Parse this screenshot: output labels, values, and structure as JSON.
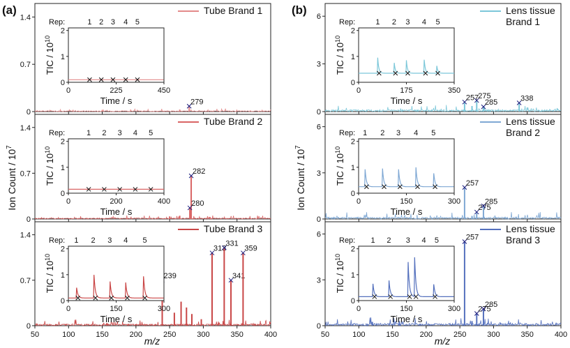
{
  "figure": {
    "panel_labels": [
      "(a)",
      "(b)"
    ],
    "inset_ylabel_base": "TIC / 10",
    "inset_ylabel_exp": "10",
    "inset_xlabel": "Time / s",
    "ylabel_base": "Ion Count / 10",
    "ylabel_exp": "7",
    "xlabel": "m/z",
    "rep_label": "Rep:",
    "rep_numbers": [
      "1",
      "2",
      "3",
      "4",
      "5"
    ]
  },
  "chart_data": [
    {
      "panel": "(a)",
      "type": "line",
      "legend": [
        "Tube Brand 1"
      ],
      "color": "#e38a8a",
      "xlim": [
        50,
        400
      ],
      "ylim": [
        0,
        1.6
      ],
      "yticks": [
        0.0,
        0.7,
        1.4
      ],
      "xticks": [
        50,
        100,
        150,
        200,
        250,
        300,
        350,
        400
      ],
      "show_xticklabels": false,
      "noise_level": 0.012,
      "peaks": [
        {
          "x": 279,
          "y": 0.08,
          "label": "279"
        },
        {
          "x": 265,
          "y": 0.03
        },
        {
          "x": 150,
          "y": 0.025
        }
      ],
      "inset": {
        "xlim": [
          0,
          450
        ],
        "xticks": [
          0,
          225,
          450
        ],
        "ylim": [
          0,
          2.1
        ],
        "yticks": [
          0,
          1,
          2
        ],
        "baseline": 0.1,
        "spikes": [],
        "markers": [
          100,
          155,
          210,
          270,
          325
        ],
        "rep_positions": [
          100,
          155,
          210,
          270,
          325
        ]
      }
    },
    {
      "panel": "(a)",
      "type": "line",
      "legend": [
        "Tube Brand 2"
      ],
      "color": "#d96565",
      "xlim": [
        50,
        400
      ],
      "ylim": [
        0,
        1.6
      ],
      "yticks": [
        0.0,
        0.7,
        1.4
      ],
      "xticks": [
        50,
        100,
        150,
        200,
        250,
        300,
        350,
        400
      ],
      "show_xticklabels": false,
      "noise_level": 0.015,
      "peaks": [
        {
          "x": 282,
          "y": 0.66,
          "label": "282"
        },
        {
          "x": 280,
          "y": 0.17,
          "label": "280"
        },
        {
          "x": 265,
          "y": 0.05
        },
        {
          "x": 250,
          "y": 0.04
        },
        {
          "x": 310,
          "y": 0.03
        }
      ],
      "inset": {
        "xlim": [
          0,
          400
        ],
        "xticks": [
          0,
          200,
          400
        ],
        "ylim": [
          0,
          2.1
        ],
        "yticks": [
          0,
          1,
          2
        ],
        "baseline": 0.15,
        "spikes": [],
        "markers": [
          85,
          150,
          215,
          280,
          345
        ],
        "rep_positions": [
          85,
          150,
          215,
          280,
          345
        ]
      }
    },
    {
      "panel": "(a)",
      "type": "line",
      "legend": [
        "Tube Brand 3"
      ],
      "color": "#c94646",
      "xlim": [
        50,
        400
      ],
      "ylim": [
        0,
        1.6
      ],
      "yticks": [
        0.0,
        0.7,
        1.4
      ],
      "xticks": [
        50,
        100,
        150,
        200,
        250,
        300,
        350,
        400
      ],
      "show_xticklabels": true,
      "noise_level": 0.025,
      "peaks": [
        {
          "x": 239,
          "y": 0.7,
          "label": "239"
        },
        {
          "x": 313,
          "y": 1.12,
          "label": "313"
        },
        {
          "x": 331,
          "y": 1.2,
          "label": "331"
        },
        {
          "x": 341,
          "y": 0.7,
          "label": "341"
        },
        {
          "x": 359,
          "y": 1.12,
          "label": "359"
        },
        {
          "x": 257,
          "y": 0.2
        },
        {
          "x": 267,
          "y": 0.37
        },
        {
          "x": 275,
          "y": 0.28
        },
        {
          "x": 283,
          "y": 0.18
        },
        {
          "x": 297,
          "y": 0.1
        },
        {
          "x": 157,
          "y": 0.04
        }
      ],
      "inset": {
        "xlim": [
          0,
          300
        ],
        "xticks": [
          0,
          150,
          300
        ],
        "ylim": [
          0,
          2.1
        ],
        "yticks": [
          0,
          1,
          2
        ],
        "baseline": 0.1,
        "spikes": [
          [
            25,
            0.5
          ],
          [
            80,
            1.0
          ],
          [
            130,
            0.8
          ],
          [
            180,
            0.6
          ],
          [
            235,
            1.05
          ]
        ],
        "markers": [
          30,
          85,
          135,
          185,
          240
        ],
        "rep_positions": [
          25,
          78,
          130,
          180,
          240
        ]
      }
    },
    {
      "panel": "(b)",
      "type": "line",
      "legend": [
        "Lens tissue",
        "Brand 1"
      ],
      "color": "#7cc7d9",
      "xlim": [
        50,
        400
      ],
      "ylim": [
        0,
        6.8
      ],
      "yticks": [
        0.0,
        3.0,
        6.0
      ],
      "xticks": [
        50,
        100,
        150,
        200,
        250,
        300,
        350,
        400
      ],
      "show_xticklabels": false,
      "noise_level": 0.12,
      "peaks": [
        {
          "x": 257,
          "y": 0.6,
          "label": "257"
        },
        {
          "x": 275,
          "y": 0.7,
          "label": "275"
        },
        {
          "x": 285,
          "y": 0.3,
          "label": "285"
        },
        {
          "x": 338,
          "y": 0.55,
          "label": "338"
        },
        {
          "x": 268,
          "y": 0.35
        }
      ],
      "inset": {
        "xlim": [
          0,
          350
        ],
        "xticks": [
          0,
          175,
          350
        ],
        "ylim": [
          0,
          2.1
        ],
        "yticks": [
          0,
          1,
          2
        ],
        "baseline": 0.35,
        "spikes": [
          [
            70,
            0.6
          ],
          [
            130,
            0.45
          ],
          [
            175,
            0.5
          ],
          [
            240,
            0.55
          ],
          [
            285,
            0.4
          ]
        ],
        "markers": [
          75,
          135,
          180,
          245,
          290
        ],
        "rep_positions": [
          70,
          130,
          180,
          240,
          290
        ]
      }
    },
    {
      "panel": "(b)",
      "type": "line",
      "legend": [
        "Lens tissue",
        "Brand 2"
      ],
      "color": "#7fa8d4",
      "xlim": [
        50,
        400
      ],
      "ylim": [
        0,
        6.8
      ],
      "yticks": [
        0.0,
        3.0,
        6.0
      ],
      "xticks": [
        50,
        100,
        150,
        200,
        250,
        300,
        350,
        400
      ],
      "show_xticklabels": false,
      "noise_level": 0.12,
      "peaks": [
        {
          "x": 257,
          "y": 2.05,
          "label": "257"
        },
        {
          "x": 275,
          "y": 0.45,
          "label": "275"
        },
        {
          "x": 285,
          "y": 0.85,
          "label": "285"
        },
        {
          "x": 268,
          "y": 0.2
        }
      ],
      "inset": {
        "xlim": [
          0,
          300
        ],
        "xticks": [
          0,
          150,
          300
        ],
        "ylim": [
          0,
          2.1
        ],
        "yticks": [
          0,
          1,
          2
        ],
        "baseline": 0.25,
        "spikes": [
          [
            20,
            0.75
          ],
          [
            75,
            0.7
          ],
          [
            125,
            0.75
          ],
          [
            180,
            0.75
          ],
          [
            235,
            0.65
          ]
        ],
        "markers": [
          25,
          80,
          130,
          185,
          240
        ],
        "rep_positions": [
          20,
          75,
          125,
          180,
          235
        ]
      }
    },
    {
      "panel": "(b)",
      "type": "line",
      "legend": [
        "Lens tissue",
        "Brand 3"
      ],
      "color": "#5470bd",
      "xlim": [
        50,
        400
      ],
      "ylim": [
        0,
        6.8
      ],
      "yticks": [
        0.0,
        3.0,
        6.0
      ],
      "xticks": [
        50,
        100,
        150,
        200,
        250,
        300,
        350,
        400
      ],
      "show_xticklabels": true,
      "noise_level": 0.15,
      "peaks": [
        {
          "x": 257,
          "y": 5.5,
          "label": "257"
        },
        {
          "x": 275,
          "y": 0.8,
          "label": "275"
        },
        {
          "x": 285,
          "y": 1.1,
          "label": "285"
        },
        {
          "x": 268,
          "y": 0.3
        },
        {
          "x": 160,
          "y": 0.3
        },
        {
          "x": 120,
          "y": 0.25
        }
      ],
      "inset": {
        "xlim": [
          0,
          300
        ],
        "xticks": [
          0,
          150,
          300
        ],
        "ylim": [
          0,
          2.1
        ],
        "yticks": [
          0,
          1,
          2
        ],
        "baseline": 0.15,
        "spikes": [
          [
            45,
            0.5
          ],
          [
            95,
            0.7
          ],
          [
            155,
            1.5
          ],
          [
            175,
            1.9
          ],
          [
            235,
            0.6
          ]
        ],
        "markers": [
          50,
          100,
          160,
          180,
          240
        ],
        "rep_positions": [
          45,
          95,
          155,
          205,
          245
        ]
      }
    }
  ]
}
